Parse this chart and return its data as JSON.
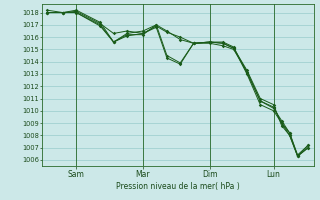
{
  "background_color": "#cce8e8",
  "grid_color": "#99cccc",
  "line_color": "#1a5c1a",
  "ylim": [
    1005.5,
    1018.7
  ],
  "yticks": [
    1006,
    1007,
    1008,
    1009,
    1010,
    1011,
    1012,
    1013,
    1014,
    1015,
    1016,
    1017,
    1018
  ],
  "xtick_labels": [
    "Sam",
    "Mar",
    "Dim",
    "Lun"
  ],
  "xtick_positions": [
    0.13,
    0.38,
    0.63,
    0.87
  ],
  "xlabel": "Pression niveau de la mer( hPa )",
  "series": [
    {
      "x": [
        0.02,
        0.08,
        0.13,
        0.22,
        0.27,
        0.32,
        0.38,
        0.43,
        0.47,
        0.52,
        0.57,
        0.63,
        0.68,
        0.72,
        0.77,
        0.82,
        0.87,
        0.9,
        0.93,
        0.96,
        1.0
      ],
      "y": [
        1018.0,
        1018.0,
        1018.0,
        1017.0,
        1015.6,
        1016.3,
        1016.5,
        1017.0,
        1016.5,
        1015.8,
        1015.5,
        1015.6,
        1015.5,
        1015.1,
        1013.3,
        1011.0,
        1010.5,
        1008.8,
        1008.0,
        1006.3,
        1007.0
      ]
    },
    {
      "x": [
        0.02,
        0.08,
        0.13,
        0.22,
        0.27,
        0.32,
        0.38,
        0.43,
        0.47,
        0.52,
        0.57,
        0.63,
        0.68,
        0.72,
        0.77,
        0.82,
        0.87,
        0.9,
        0.93,
        0.96,
        1.0
      ],
      "y": [
        1018.0,
        1018.0,
        1018.0,
        1016.9,
        1015.6,
        1016.1,
        1016.3,
        1016.9,
        1016.4,
        1016.0,
        1015.5,
        1015.5,
        1015.3,
        1015.0,
        1013.2,
        1010.8,
        1010.3,
        1009.0,
        1008.2,
        1006.3,
        1007.2
      ]
    },
    {
      "x": [
        0.02,
        0.08,
        0.13,
        0.22,
        0.27,
        0.32,
        0.38,
        0.43,
        0.47,
        0.52,
        0.57,
        0.63,
        0.68,
        0.72,
        0.77,
        0.82,
        0.87,
        0.9,
        0.93,
        0.96,
        1.0
      ],
      "y": [
        1018.2,
        1018.0,
        1018.1,
        1017.1,
        1016.3,
        1016.5,
        1016.3,
        1016.8,
        1014.3,
        1013.8,
        1015.5,
        1015.6,
        1015.6,
        1015.2,
        1013.1,
        1010.8,
        1010.2,
        1009.2,
        1008.2,
        1006.4,
        1007.2
      ]
    },
    {
      "x": [
        0.02,
        0.08,
        0.13,
        0.22,
        0.27,
        0.32,
        0.38,
        0.43,
        0.47,
        0.52,
        0.57,
        0.63,
        0.68,
        0.72,
        0.77,
        0.82,
        0.87,
        0.9,
        0.93,
        0.96,
        1.0
      ],
      "y": [
        1018.0,
        1018.0,
        1018.2,
        1017.2,
        1015.6,
        1016.2,
        1016.2,
        1017.0,
        1014.5,
        1013.9,
        1015.5,
        1015.6,
        1015.5,
        1015.1,
        1013.0,
        1010.5,
        1010.0,
        1009.0,
        1008.0,
        1006.3,
        1007.0
      ]
    }
  ],
  "vline_positions": [
    0.13,
    0.38,
    0.63,
    0.87
  ]
}
